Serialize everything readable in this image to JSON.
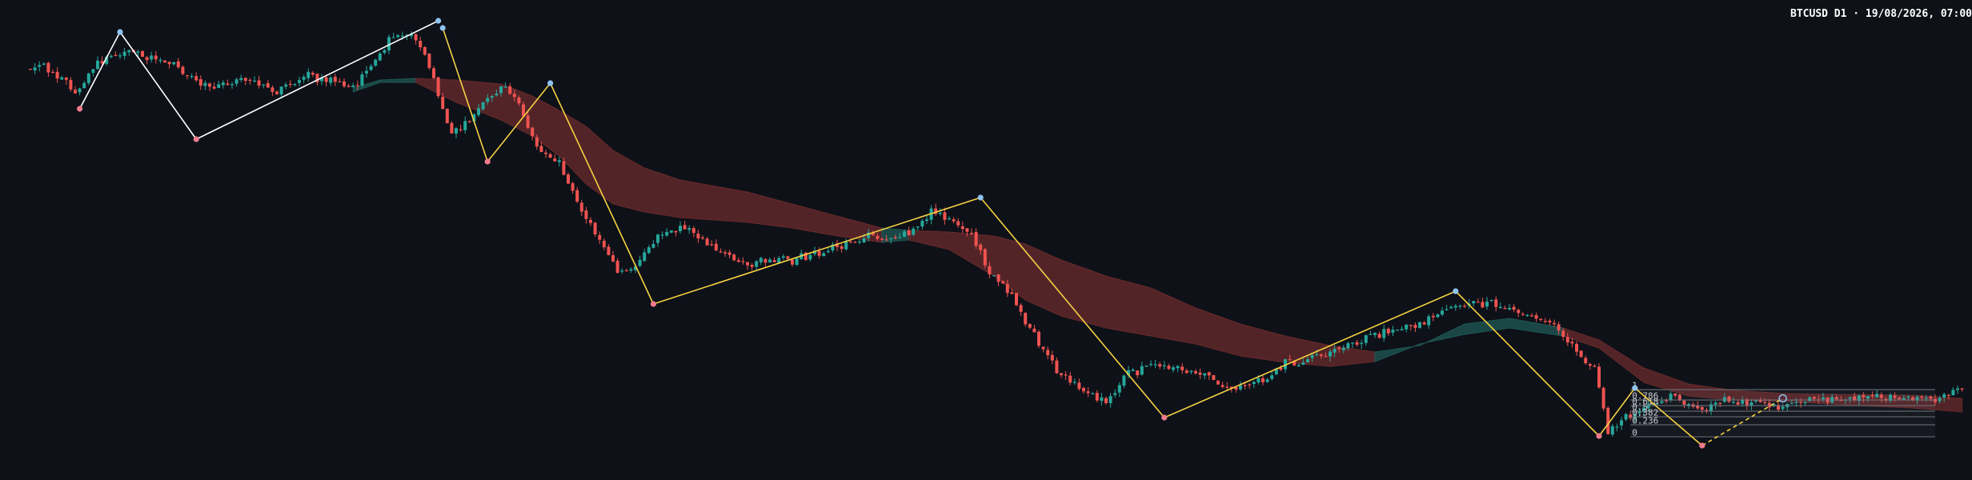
{
  "header": {
    "title": "BTCUSD D1 · 19/08/2026, 07:00"
  },
  "colors": {
    "background": "#0e1118",
    "up_candle": "#26a69a",
    "down_candle": "#ef5350",
    "zigzag_white": "#ffffff",
    "zigzag_yellow": "#f5d142",
    "pivot_high": "#8fc4f0",
    "pivot_low": "#f07a8c",
    "cloud_bear": "#6b2b2c",
    "cloud_bull": "#1f5a55",
    "fib_line": "#6f757e",
    "fib_text": "#c8ccd2"
  },
  "chart_data": {
    "type": "candlestick",
    "title": "BTCUSD D1 · 19/08/2026, 07:00",
    "grid": false,
    "legend": "none",
    "y_range": [
      0,
      600
    ],
    "anchor_path": [
      [
        0,
        85
      ],
      [
        3,
        82
      ],
      [
        7,
        95
      ],
      [
        10,
        118
      ],
      [
        15,
        78
      ],
      [
        22,
        65
      ],
      [
        30,
        75
      ],
      [
        40,
        110
      ],
      [
        48,
        100
      ],
      [
        55,
        115
      ],
      [
        62,
        96
      ],
      [
        68,
        102
      ],
      [
        72,
        112
      ],
      [
        75,
        90
      ],
      [
        80,
        50
      ],
      [
        85,
        40
      ],
      [
        88,
        70
      ],
      [
        91,
        120
      ],
      [
        94,
        170
      ],
      [
        98,
        150
      ],
      [
        101,
        130
      ],
      [
        106,
        105
      ],
      [
        110,
        140
      ],
      [
        113,
        185
      ],
      [
        118,
        200
      ],
      [
        122,
        255
      ],
      [
        127,
        300
      ],
      [
        131,
        340
      ],
      [
        135,
        335
      ],
      [
        140,
        295
      ],
      [
        145,
        285
      ],
      [
        150,
        300
      ],
      [
        160,
        330
      ],
      [
        170,
        325
      ],
      [
        180,
        310
      ],
      [
        187,
        295
      ],
      [
        192,
        300
      ],
      [
        198,
        283
      ],
      [
        201,
        262
      ],
      [
        205,
        275
      ],
      [
        210,
        290
      ],
      [
        213,
        330
      ],
      [
        220,
        380
      ],
      [
        225,
        430
      ],
      [
        230,
        470
      ],
      [
        235,
        485
      ],
      [
        240,
        505
      ],
      [
        244,
        470
      ],
      [
        250,
        455
      ],
      [
        255,
        460
      ],
      [
        262,
        470
      ],
      [
        268,
        487
      ],
      [
        275,
        475
      ],
      [
        280,
        455
      ],
      [
        290,
        440
      ],
      [
        300,
        420
      ],
      [
        310,
        405
      ],
      [
        318,
        380
      ],
      [
        325,
        378
      ],
      [
        333,
        392
      ],
      [
        340,
        405
      ],
      [
        345,
        440
      ],
      [
        349,
        460
      ],
      [
        352,
        540
      ],
      [
        355,
        525
      ],
      [
        360,
        508
      ],
      [
        366,
        495
      ],
      [
        372,
        515
      ],
      [
        378,
        498
      ],
      [
        385,
        506
      ],
      [
        392,
        508
      ],
      [
        398,
        500
      ],
      [
        405,
        500
      ],
      [
        412,
        495
      ],
      [
        425,
        500
      ],
      [
        431,
        480
      ]
    ],
    "ohlc_generated": true,
    "ohlc_seed": 12345,
    "ohlc_count": 432,
    "cloud": {
      "segments": [
        {
          "from": 72,
          "to": 86,
          "kind": "bull"
        },
        {
          "from": 86,
          "to": 190,
          "kind": "bear"
        },
        {
          "from": 190,
          "to": 196,
          "kind": "bull"
        },
        {
          "from": 196,
          "to": 300,
          "kind": "bear"
        },
        {
          "from": 300,
          "to": 342,
          "kind": "bull"
        },
        {
          "from": 342,
          "to": 431,
          "kind": "bear"
        }
      ],
      "upper_path": [
        [
          72,
          110
        ],
        [
          78,
          100
        ],
        [
          86,
          98
        ],
        [
          95,
          100
        ],
        [
          105,
          105
        ],
        [
          112,
          120
        ],
        [
          118,
          138
        ],
        [
          124,
          158
        ],
        [
          130,
          188
        ],
        [
          137,
          210
        ],
        [
          145,
          225
        ],
        [
          160,
          240
        ],
        [
          170,
          255
        ],
        [
          180,
          270
        ],
        [
          190,
          285
        ],
        [
          196,
          288
        ],
        [
          205,
          290
        ],
        [
          215,
          295
        ],
        [
          222,
          305
        ],
        [
          230,
          325
        ],
        [
          240,
          345
        ],
        [
          250,
          360
        ],
        [
          260,
          385
        ],
        [
          270,
          405
        ],
        [
          280,
          420
        ],
        [
          290,
          432
        ],
        [
          300,
          440
        ],
        [
          310,
          432
        ],
        [
          320,
          405
        ],
        [
          330,
          398
        ],
        [
          342,
          410
        ],
        [
          350,
          425
        ],
        [
          360,
          460
        ],
        [
          370,
          480
        ],
        [
          380,
          488
        ],
        [
          392,
          492
        ],
        [
          405,
          493
        ],
        [
          420,
          494
        ],
        [
          431,
          498
        ]
      ],
      "lower_path": [
        [
          72,
          115
        ],
        [
          78,
          103
        ],
        [
          86,
          103
        ],
        [
          95,
          128
        ],
        [
          105,
          150
        ],
        [
          112,
          170
        ],
        [
          118,
          195
        ],
        [
          124,
          230
        ],
        [
          130,
          255
        ],
        [
          137,
          265
        ],
        [
          145,
          272
        ],
        [
          160,
          278
        ],
        [
          170,
          285
        ],
        [
          180,
          295
        ],
        [
          190,
          303
        ],
        [
          196,
          300
        ],
        [
          205,
          312
        ],
        [
          215,
          345
        ],
        [
          222,
          375
        ],
        [
          230,
          395
        ],
        [
          240,
          410
        ],
        [
          250,
          420
        ],
        [
          260,
          430
        ],
        [
          270,
          445
        ],
        [
          280,
          453
        ],
        [
          290,
          458
        ],
        [
          300,
          452
        ],
        [
          310,
          430
        ],
        [
          320,
          418
        ],
        [
          330,
          410
        ],
        [
          342,
          420
        ],
        [
          350,
          435
        ],
        [
          360,
          478
        ],
        [
          370,
          495
        ],
        [
          380,
          500
        ],
        [
          392,
          502
        ],
        [
          405,
          506
        ],
        [
          420,
          510
        ],
        [
          431,
          515
        ]
      ]
    },
    "zigzag_white": [
      {
        "i": 11,
        "y": 136,
        "kind": "low"
      },
      {
        "i": 20,
        "y": 40,
        "kind": "high"
      },
      {
        "i": 37,
        "y": 174,
        "kind": "low"
      },
      {
        "i": 91,
        "y": 26,
        "kind": "high"
      }
    ],
    "zigzag_yellow": [
      {
        "i": 92,
        "y": 35,
        "kind": "high"
      },
      {
        "i": 102,
        "y": 202,
        "kind": "low"
      },
      {
        "i": 116,
        "y": 104,
        "kind": "high"
      },
      {
        "i": 139,
        "y": 380,
        "kind": "low"
      },
      {
        "i": 212,
        "y": 247,
        "kind": "high"
      },
      {
        "i": 253,
        "y": 522,
        "kind": "low"
      },
      {
        "i": 318,
        "y": 364,
        "kind": "high"
      },
      {
        "i": 350,
        "y": 545,
        "kind": "low"
      },
      {
        "i": 358,
        "y": 485,
        "kind": "high"
      },
      {
        "i": 373,
        "y": 557,
        "kind": "low"
      }
    ],
    "zigzag_dashed": {
      "from": {
        "i": 373,
        "y": 557
      },
      "to": {
        "i": 391,
        "y": 498,
        "kind": "pending-high"
      }
    },
    "fibonacci": {
      "from_i": 357,
      "to_i": 425,
      "levels": [
        {
          "label": "1",
          "y": 487
        },
        {
          "label": "0.786",
          "y": 500
        },
        {
          "label": "0.618",
          "y": 507
        },
        {
          "label": "0.5",
          "y": 514
        },
        {
          "label": "0.382",
          "y": 521
        },
        {
          "label": "0.236",
          "y": 531
        },
        {
          "label": "0",
          "y": 546
        }
      ]
    }
  }
}
